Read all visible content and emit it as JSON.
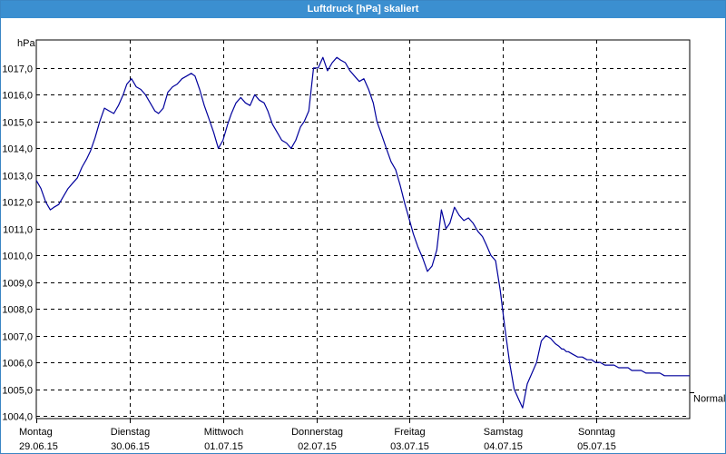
{
  "window": {
    "title": "Luftdruck [hPa] skaliert"
  },
  "chart_data": {
    "type": "line",
    "title": "Luftdruck [hPa] skaliert",
    "ylabel": "hPa",
    "xlabel": "",
    "ylim": [
      1003.9,
      1018.05
    ],
    "xlim": [
      0,
      7
    ],
    "grid": true,
    "y_ticks": [
      1004,
      1005,
      1006,
      1007,
      1008,
      1009,
      1010,
      1011,
      1012,
      1013,
      1014,
      1015,
      1016,
      1017
    ],
    "y_tick_labels": [
      "1004,0",
      "1005,0",
      "1006,0",
      "1007,0",
      "1008,0",
      "1009,0",
      "1010,0",
      "1011,0",
      "1012,0",
      "1013,0",
      "1014,0",
      "1015,0",
      "1016,0",
      "1017,0"
    ],
    "x_tick_labels": [
      {
        "day": "Montag",
        "date": "29.06.15"
      },
      {
        "day": "Dienstag",
        "date": "30.06.15"
      },
      {
        "day": "Mittwoch",
        "date": "01.07.15"
      },
      {
        "day": "Donnerstag",
        "date": "02.07.15"
      },
      {
        "day": "Freitag",
        "date": "03.07.15"
      },
      {
        "day": "Samstag",
        "date": "04.07.15"
      },
      {
        "day": "Sonntag",
        "date": "05.07.15"
      }
    ],
    "reference_line": {
      "label": "Normal",
      "value": 1004.9
    },
    "series": [
      {
        "color": "#00009c",
        "x": [
          0.0,
          0.05,
          0.1,
          0.15,
          0.19,
          0.24,
          0.29,
          0.34,
          0.39,
          0.44,
          0.49,
          0.54,
          0.58,
          0.63,
          0.68,
          0.73,
          0.78,
          0.83,
          0.88,
          0.93,
          0.97,
          1.02,
          1.07,
          1.12,
          1.17,
          1.22,
          1.27,
          1.31,
          1.36,
          1.41,
          1.46,
          1.51,
          1.56,
          1.61,
          1.66,
          1.7,
          1.75,
          1.8,
          1.85,
          1.9,
          1.95,
          2.0,
          2.05,
          2.09,
          2.14,
          2.19,
          2.24,
          2.29,
          2.34,
          2.39,
          2.44,
          2.48,
          2.53,
          2.58,
          2.63,
          2.68,
          2.73,
          2.78,
          2.83,
          2.87,
          2.92,
          2.97,
          3.02,
          3.07,
          3.12,
          3.17,
          3.22,
          3.26,
          3.31,
          3.36,
          3.41,
          3.46,
          3.51,
          3.56,
          3.61,
          3.65,
          3.7,
          3.75,
          3.8,
          3.85,
          3.9,
          3.95,
          4.0,
          4.04,
          4.09,
          4.14,
          4.19,
          4.24,
          4.29,
          4.34,
          4.39,
          4.43,
          4.48,
          4.53,
          4.58,
          4.63,
          4.68,
          4.73,
          4.78,
          4.82,
          4.87,
          4.92,
          4.97,
          5.02,
          5.07,
          5.12,
          5.17,
          5.21,
          5.26,
          5.31,
          5.36,
          5.41,
          5.46,
          5.51,
          5.56,
          5.6,
          5.63,
          5.65,
          5.68,
          5.7,
          5.75,
          5.8,
          5.85,
          5.9,
          5.95,
          5.99,
          6.04,
          6.09,
          6.14,
          6.19,
          6.24,
          6.29,
          6.34,
          6.38,
          6.43,
          6.48,
          6.53,
          6.58,
          6.63,
          6.68,
          6.73,
          6.77,
          6.82,
          6.87,
          6.92,
          6.97,
          7.0
        ],
        "y": [
          1012.8,
          1012.5,
          1012.0,
          1011.7,
          1011.8,
          1011.9,
          1012.2,
          1012.5,
          1012.7,
          1012.9,
          1013.3,
          1013.6,
          1013.9,
          1014.4,
          1015.0,
          1015.5,
          1015.4,
          1015.3,
          1015.6,
          1016.0,
          1016.4,
          1016.6,
          1016.3,
          1016.2,
          1016.0,
          1015.7,
          1015.4,
          1015.3,
          1015.5,
          1016.1,
          1016.3,
          1016.4,
          1016.6,
          1016.7,
          1016.8,
          1016.7,
          1016.2,
          1015.6,
          1015.1,
          1014.6,
          1014.0,
          1014.3,
          1014.9,
          1015.3,
          1015.7,
          1015.9,
          1015.7,
          1015.6,
          1016.0,
          1015.8,
          1015.7,
          1015.4,
          1014.9,
          1014.6,
          1014.3,
          1014.2,
          1014.0,
          1014.3,
          1014.8,
          1015.0,
          1015.4,
          1017.0,
          1017.0,
          1017.4,
          1016.9,
          1017.2,
          1017.4,
          1017.3,
          1017.2,
          1016.9,
          1016.7,
          1016.5,
          1016.6,
          1016.2,
          1015.7,
          1015.0,
          1014.5,
          1014.0,
          1013.5,
          1013.2,
          1012.6,
          1011.9,
          1011.3,
          1010.8,
          1010.3,
          1009.9,
          1009.4,
          1009.6,
          1010.2,
          1011.7,
          1011.0,
          1011.2,
          1011.8,
          1011.5,
          1011.3,
          1011.4,
          1011.2,
          1010.9,
          1010.7,
          1010.4,
          1010.0,
          1009.8,
          1008.7,
          1007.3,
          1006.0,
          1005.0,
          1004.6,
          1004.3,
          1005.2,
          1005.6,
          1006.0,
          1006.8,
          1007.0,
          1006.9,
          1006.7,
          1006.6,
          1006.5,
          1006.5,
          1006.4,
          1006.4,
          1006.3,
          1006.2,
          1006.2,
          1006.1,
          1006.1,
          1006.0,
          1006.0,
          1005.9,
          1005.9,
          1005.9,
          1005.8,
          1005.8,
          1005.8,
          1005.7,
          1005.7,
          1005.7,
          1005.6,
          1005.6,
          1005.6,
          1005.6,
          1005.5,
          1005.5,
          1005.5,
          1005.5,
          1005.5,
          1005.5,
          1005.5
        ]
      }
    ]
  }
}
